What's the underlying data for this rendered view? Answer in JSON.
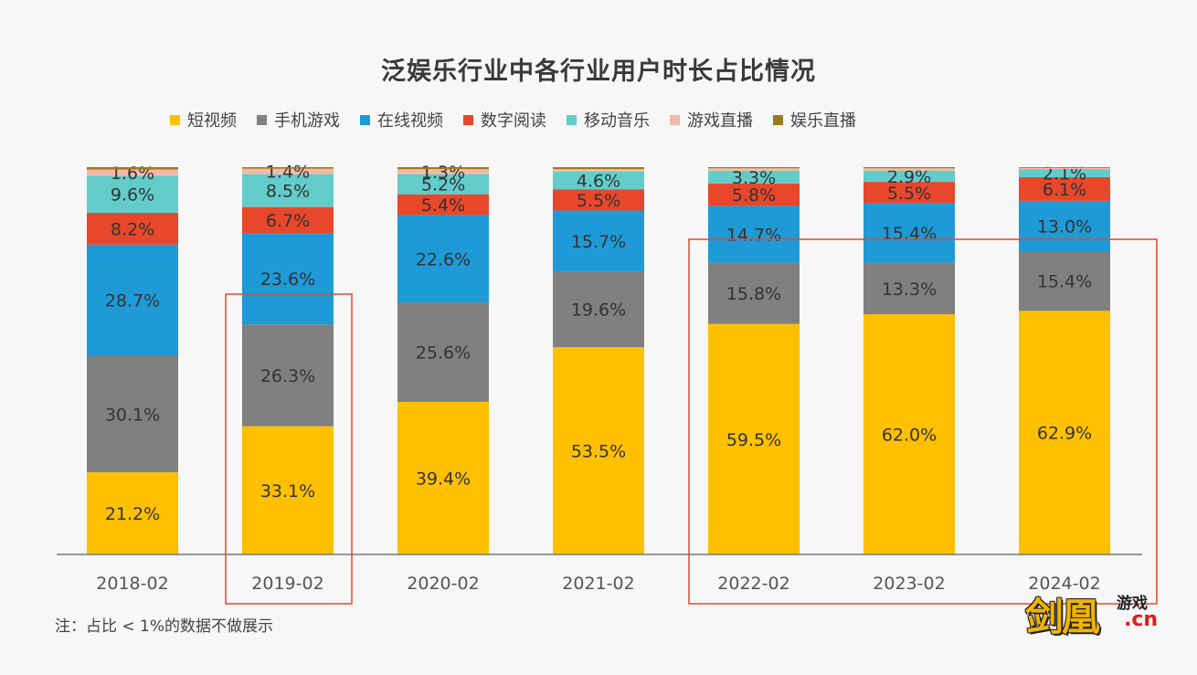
{
  "chart_data": {
    "type": "bar",
    "stacked": true,
    "title": "泛娱乐行业中各行业用户时长占比情况",
    "categories": [
      "2018-02",
      "2019-02",
      "2020-02",
      "2021-02",
      "2022-02",
      "2023-02",
      "2024-02"
    ],
    "series": [
      {
        "name": "短视频",
        "color": "#FFC000",
        "values": [
          21.2,
          33.1,
          39.4,
          53.5,
          59.5,
          62.0,
          62.9
        ],
        "labels": [
          "21.2%",
          "33.1%",
          "39.4%",
          "53.5%",
          "59.5%",
          "62.0%",
          "62.9%"
        ]
      },
      {
        "name": "手机游戏",
        "color": "#808080",
        "values": [
          30.1,
          26.3,
          25.6,
          19.6,
          15.8,
          13.3,
          15.4
        ],
        "labels": [
          "30.1%",
          "26.3%",
          "25.6%",
          "19.6%",
          "15.8%",
          "13.3%",
          "15.4%"
        ]
      },
      {
        "name": "在线视频",
        "color": "#1E9AD6",
        "values": [
          28.7,
          23.6,
          22.6,
          15.7,
          14.7,
          15.4,
          13.0
        ],
        "labels": [
          "28.7%",
          "23.6%",
          "22.6%",
          "15.7%",
          "14.7%",
          "15.4%",
          "13.0%"
        ]
      },
      {
        "name": "数字阅读",
        "color": "#E8472B",
        "values": [
          8.2,
          6.7,
          5.4,
          5.5,
          5.8,
          5.5,
          6.1
        ],
        "labels": [
          "8.2%",
          "6.7%",
          "5.4%",
          "5.5%",
          "5.8%",
          "5.5%",
          "6.1%"
        ]
      },
      {
        "name": "移动音乐",
        "color": "#62CCCB",
        "values": [
          9.6,
          8.5,
          5.2,
          4.6,
          3.3,
          2.9,
          2.1
        ],
        "labels": [
          "9.6%",
          "8.5%",
          "5.2%",
          "4.6%",
          "3.3%",
          "2.9%",
          "2.1%"
        ]
      },
      {
        "name": "游戏直播",
        "color": "#F6B9A9",
        "values": [
          1.6,
          1.4,
          1.3,
          0.6,
          0.6,
          0.6,
          0.3
        ],
        "labels": [
          "1.6%",
          "1.4%",
          "1.3%",
          "",
          "",
          "",
          ""
        ]
      },
      {
        "name": "娱乐直播",
        "color": "#9C7A1C",
        "values": [
          0.6,
          0.4,
          0.5,
          0.5,
          0.3,
          0.3,
          0.2
        ],
        "labels": [
          "",
          "",
          "",
          "",
          "",
          "",
          ""
        ]
      }
    ],
    "ylim": [
      0,
      100
    ],
    "grid": false,
    "legend_position": "top",
    "highlight_boxes": [
      {
        "categories": [
          "2019-02"
        ],
        "color": "#E8472B"
      },
      {
        "categories": [
          "2022-02",
          "2023-02",
          "2024-02"
        ],
        "color": "#E8472B"
      }
    ],
    "note": "注：占比 < 1%的数据不做展示"
  },
  "watermark": {
    "main": "剑凰",
    "sub": "游戏",
    "domain": ".cn"
  }
}
